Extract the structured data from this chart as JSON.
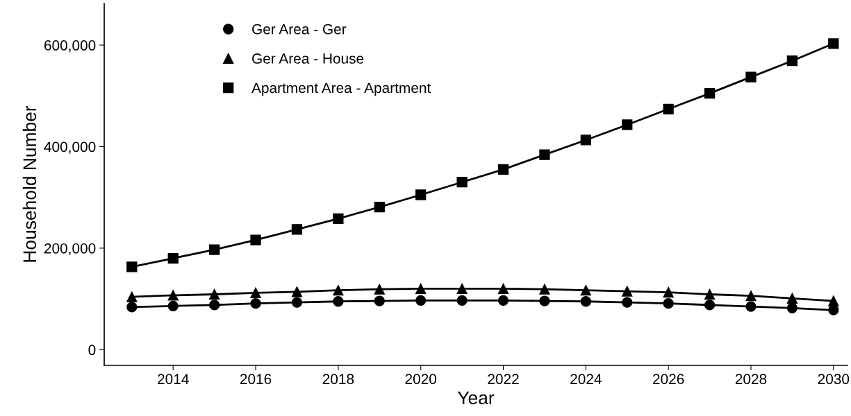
{
  "chart_data": {
    "type": "line",
    "xlabel": "Year",
    "ylabel": "Household Number",
    "x": [
      2013,
      2014,
      2015,
      2016,
      2017,
      2018,
      2019,
      2020,
      2021,
      2022,
      2023,
      2024,
      2025,
      2026,
      2027,
      2028,
      2029,
      2030
    ],
    "series": [
      {
        "name": "Ger Area - Ger",
        "color": "#000000",
        "marker": "circle",
        "values": [
          84000,
          86000,
          88000,
          91000,
          93000,
          95000,
          96000,
          97000,
          97000,
          97000,
          96000,
          95000,
          93000,
          91000,
          88000,
          85000,
          82000,
          78000
        ]
      },
      {
        "name": "Ger Area - House",
        "color": "#000000",
        "marker": "triangle",
        "values": [
          104000,
          107000,
          109000,
          112000,
          114000,
          117000,
          119000,
          120000,
          120000,
          120000,
          119000,
          117000,
          115000,
          113000,
          109000,
          106000,
          101000,
          96000
        ]
      },
      {
        "name": "Apartment Area - Apartment",
        "color": "#000000",
        "marker": "square",
        "values": [
          163000,
          180000,
          197000,
          216000,
          237000,
          258000,
          281000,
          305000,
          330000,
          355000,
          384000,
          413000,
          443000,
          474000,
          505000,
          537000,
          569000,
          603000
        ]
      }
    ],
    "xlim": [
      2012.33,
      2030.34
    ],
    "ylim": [
      -31000,
      682000
    ],
    "xticks": [
      2014,
      2016,
      2018,
      2020,
      2022,
      2024,
      2026,
      2028,
      2030
    ],
    "yticks": [
      {
        "value": 0,
        "label": "0"
      },
      {
        "value": 200000,
        "label": "200,000"
      },
      {
        "value": 400000,
        "label": "400,000"
      },
      {
        "value": 600000,
        "label": "600,000"
      }
    ],
    "grid": false,
    "legend": "top left",
    "line_style": "solid"
  }
}
